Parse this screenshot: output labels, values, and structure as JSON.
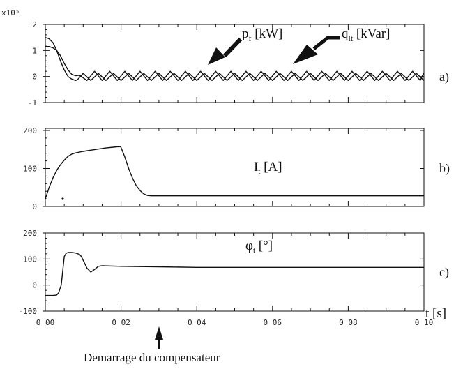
{
  "figure": {
    "caption": "Demarrage du compensateur",
    "x_axis_label": "t [s]",
    "x_axis_ticks": [
      "0 00",
      "0 02",
      "0 04",
      "0 06",
      "0 08",
      "0 10"
    ],
    "line_color": "#111111"
  },
  "chart_data": [
    {
      "type": "line",
      "panel_label": "a)",
      "y_exponent_label": "x10⁵",
      "xlim": [
        0,
        0.1
      ],
      "ylim": [
        -1,
        2
      ],
      "y_ticks": [
        "2",
        "1",
        "0",
        "-1"
      ],
      "y_tick_values": [
        2,
        1,
        0,
        -1
      ],
      "annotations": [
        "p",
        "f",
        " [kW]",
        "q",
        "lt",
        " [kVar]"
      ],
      "series": [
        {
          "name": "p_f [kW]",
          "x": [
            0,
            0.001,
            0.002,
            0.003,
            0.004,
            0.005,
            0.006,
            0.007,
            0.008,
            0.0085,
            0.01,
            0.012,
            0.014,
            0.016,
            0.018,
            0.02,
            0.022,
            0.024,
            0.026,
            0.028,
            0.03,
            0.032,
            0.034,
            0.036,
            0.038,
            0.04,
            0.042,
            0.044,
            0.046,
            0.048,
            0.05,
            0.052,
            0.054,
            0.056,
            0.058,
            0.06,
            0.062,
            0.064,
            0.066,
            0.068,
            0.07,
            0.072,
            0.074,
            0.076,
            0.078,
            0.08,
            0.082,
            0.084,
            0.086,
            0.088,
            0.09,
            0.092,
            0.094,
            0.096,
            0.098,
            0.1
          ],
          "y": [
            1.5,
            1.45,
            1.3,
            1.0,
            0.6,
            0.25,
            0.0,
            -0.1,
            -0.15,
            -0.12,
            0.12,
            -0.15,
            0.12,
            -0.15,
            0.12,
            -0.15,
            0.12,
            -0.15,
            0.12,
            -0.15,
            0.12,
            -0.15,
            0.12,
            -0.15,
            0.12,
            -0.15,
            0.12,
            -0.15,
            0.12,
            -0.15,
            0.12,
            -0.15,
            0.12,
            -0.15,
            0.12,
            -0.15,
            0.12,
            -0.15,
            0.12,
            -0.15,
            0.12,
            -0.15,
            0.12,
            -0.15,
            0.12,
            -0.15,
            0.12,
            -0.15,
            0.12,
            -0.15,
            0.12,
            -0.15,
            0.12,
            -0.15,
            0.12,
            -0.15
          ]
        },
        {
          "name": "q_lt [kVar]",
          "x": [
            0,
            0.001,
            0.002,
            0.003,
            0.004,
            0.005,
            0.006,
            0.007,
            0.008,
            0.009,
            0.011,
            0.013,
            0.015,
            0.017,
            0.019,
            0.021,
            0.023,
            0.025,
            0.027,
            0.029,
            0.031,
            0.033,
            0.035,
            0.037,
            0.039,
            0.041,
            0.043,
            0.045,
            0.047,
            0.049,
            0.051,
            0.053,
            0.055,
            0.057,
            0.059,
            0.061,
            0.063,
            0.065,
            0.067,
            0.069,
            0.071,
            0.073,
            0.075,
            0.077,
            0.079,
            0.081,
            0.083,
            0.085,
            0.087,
            0.089,
            0.091,
            0.093,
            0.095,
            0.097,
            0.099,
            0.1
          ],
          "y": [
            1.15,
            1.15,
            1.1,
            1.0,
            0.8,
            0.5,
            0.25,
            0.08,
            0.03,
            0.05,
            -0.15,
            0.2,
            -0.15,
            0.2,
            -0.15,
            0.2,
            -0.15,
            0.2,
            -0.15,
            0.2,
            -0.15,
            0.2,
            -0.15,
            0.2,
            -0.15,
            0.2,
            -0.15,
            0.2,
            -0.15,
            0.2,
            -0.15,
            0.2,
            -0.15,
            0.2,
            -0.15,
            0.2,
            -0.15,
            0.2,
            -0.15,
            0.2,
            -0.15,
            0.2,
            -0.15,
            0.2,
            -0.15,
            0.2,
            -0.15,
            0.2,
            -0.15,
            0.2,
            -0.15,
            0.2,
            -0.15,
            0.2,
            -0.15,
            0.15
          ]
        }
      ]
    },
    {
      "type": "line",
      "panel_label": "b)",
      "xlim": [
        0,
        0.1
      ],
      "ylim": [
        0,
        200
      ],
      "y_ticks": [
        "200",
        "100",
        "0"
      ],
      "y_tick_values": [
        200,
        100,
        0
      ],
      "annotations": [
        "I",
        "t",
        " [A]"
      ],
      "series": [
        {
          "name": "I_t [A]",
          "x": [
            0,
            0.001,
            0.002,
            0.003,
            0.004,
            0.005,
            0.006,
            0.007,
            0.008,
            0.01,
            0.012,
            0.014,
            0.016,
            0.018,
            0.019,
            0.0195,
            0.0198,
            0.02,
            0.021,
            0.022,
            0.023,
            0.024,
            0.025,
            0.026,
            0.027,
            0.028,
            0.03,
            0.04,
            0.05,
            0.06,
            0.07,
            0.08,
            0.09,
            0.1
          ],
          "y": [
            20,
            50,
            75,
            95,
            110,
            122,
            132,
            138,
            141,
            145,
            148,
            151,
            154,
            156,
            157,
            157,
            158,
            155,
            130,
            100,
            75,
            55,
            42,
            33,
            29,
            28,
            28,
            28,
            28,
            28,
            28,
            28,
            28,
            28
          ]
        }
      ]
    },
    {
      "type": "line",
      "panel_label": "c)",
      "xlim": [
        0,
        0.1
      ],
      "ylim": [
        -100,
        200
      ],
      "y_ticks": [
        "200",
        "100",
        "0",
        "-100"
      ],
      "y_tick_values": [
        200,
        100,
        0,
        -100
      ],
      "annotations": [
        "φ",
        "t",
        " [°]"
      ],
      "series": [
        {
          "name": "φ_t [°]",
          "x": [
            0,
            0.001,
            0.002,
            0.003,
            0.0035,
            0.0042,
            0.005,
            0.0055,
            0.006,
            0.007,
            0.008,
            0.009,
            0.0095,
            0.01,
            0.011,
            0.012,
            0.013,
            0.014,
            0.015,
            0.02,
            0.03,
            0.04,
            0.05,
            0.06,
            0.07,
            0.08,
            0.09,
            0.1
          ],
          "y": [
            -40,
            -40,
            -40,
            -38,
            -30,
            0,
            110,
            122,
            125,
            125,
            123,
            118,
            110,
            95,
            65,
            50,
            60,
            72,
            74,
            72,
            70,
            68,
            68,
            68,
            68,
            68,
            68,
            68
          ]
        }
      ]
    }
  ]
}
